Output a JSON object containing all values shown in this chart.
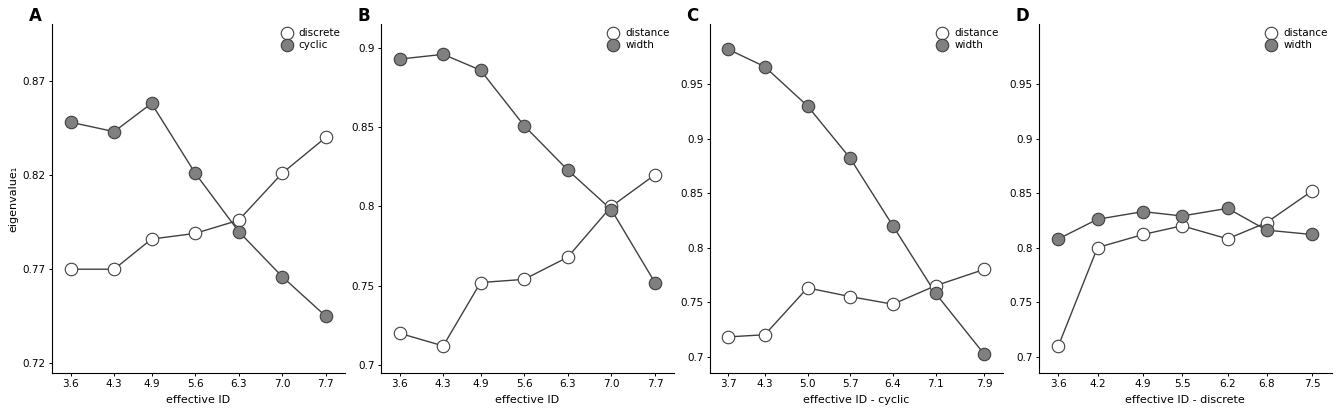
{
  "panel_A": {
    "label": "A",
    "xlabel": "effective ID",
    "ylabel": "eigenvalue₁",
    "ylim": [
      0.715,
      0.9
    ],
    "yticks": [
      0.72,
      0.77,
      0.82,
      0.87
    ],
    "xticks": [
      3.6,
      4.3,
      4.9,
      5.6,
      6.3,
      7.0,
      7.7
    ],
    "xlim": [
      3.3,
      8.0
    ],
    "series": [
      {
        "label": "discrete",
        "x": [
          3.6,
          4.3,
          4.9,
          5.6,
          6.3,
          7.0,
          7.7
        ],
        "y": [
          0.77,
          0.77,
          0.786,
          0.789,
          0.796,
          0.821,
          0.84
        ],
        "filled": false
      },
      {
        "label": "cyclic",
        "x": [
          3.6,
          4.3,
          4.9,
          5.6,
          6.3,
          7.0,
          7.7
        ],
        "y": [
          0.848,
          0.843,
          0.858,
          0.821,
          0.79,
          0.766,
          0.745
        ],
        "filled": true
      }
    ]
  },
  "panel_B": {
    "label": "B",
    "xlabel": "effective ID",
    "ylabel": "",
    "ylim": [
      0.695,
      0.915
    ],
    "yticks": [
      0.7,
      0.75,
      0.8,
      0.85,
      0.9
    ],
    "xticks": [
      3.6,
      4.3,
      4.9,
      5.6,
      6.3,
      7.0,
      7.7
    ],
    "xlim": [
      3.3,
      8.0
    ],
    "series": [
      {
        "label": "distance",
        "x": [
          3.6,
          4.3,
          4.9,
          5.6,
          6.3,
          7.0,
          7.7
        ],
        "y": [
          0.72,
          0.712,
          0.752,
          0.754,
          0.768,
          0.8,
          0.82
        ],
        "filled": false
      },
      {
        "label": "width",
        "x": [
          3.6,
          4.3,
          4.9,
          5.6,
          6.3,
          7.0,
          7.7
        ],
        "y": [
          0.893,
          0.896,
          0.886,
          0.851,
          0.823,
          0.798,
          0.752
        ],
        "filled": true
      }
    ]
  },
  "panel_C": {
    "label": "C",
    "xlabel": "effective ID - cyclic",
    "ylabel": "",
    "ylim": [
      0.685,
      1.005
    ],
    "yticks": [
      0.7,
      0.75,
      0.8,
      0.85,
      0.9,
      0.95
    ],
    "xticks": [
      3.7,
      4.3,
      5.0,
      5.7,
      6.4,
      7.1,
      7.9
    ],
    "xlim": [
      3.4,
      8.2
    ],
    "series": [
      {
        "label": "distance",
        "x": [
          3.7,
          4.3,
          5.0,
          5.7,
          6.4,
          7.1,
          7.9
        ],
        "y": [
          0.718,
          0.72,
          0.763,
          0.755,
          0.748,
          0.765,
          0.78
        ],
        "filled": false
      },
      {
        "label": "width",
        "x": [
          3.7,
          4.3,
          5.0,
          5.7,
          6.4,
          7.1,
          7.9
        ],
        "y": [
          0.982,
          0.966,
          0.93,
          0.882,
          0.82,
          0.758,
          0.702
        ],
        "filled": true
      }
    ]
  },
  "panel_D": {
    "label": "D",
    "xlabel": "effective ID - discrete",
    "ylabel": "",
    "ylim": [
      0.685,
      1.005
    ],
    "yticks": [
      0.7,
      0.75,
      0.8,
      0.85,
      0.9,
      0.95
    ],
    "xticks": [
      3.6,
      4.2,
      4.9,
      5.5,
      6.2,
      6.8,
      7.5
    ],
    "xlim": [
      3.3,
      7.8
    ],
    "series": [
      {
        "label": "distance",
        "x": [
          3.6,
          4.2,
          4.9,
          5.5,
          6.2,
          6.8,
          7.5
        ],
        "y": [
          0.71,
          0.8,
          0.812,
          0.82,
          0.808,
          0.823,
          0.852
        ],
        "filled": false
      },
      {
        "label": "width",
        "x": [
          3.6,
          4.2,
          4.9,
          5.5,
          6.2,
          6.8,
          7.5
        ],
        "y": [
          0.808,
          0.826,
          0.833,
          0.829,
          0.836,
          0.816,
          0.812
        ],
        "filled": true
      }
    ]
  },
  "line_color": "#404040",
  "light_marker_color": "#c8c8c8",
  "dark_marker_color": "#808080",
  "bg_color": "#ffffff",
  "marker_size": 9,
  "linewidth": 1.0,
  "fontsize_label": 8,
  "fontsize_tick": 7.5,
  "fontsize_panel": 12
}
